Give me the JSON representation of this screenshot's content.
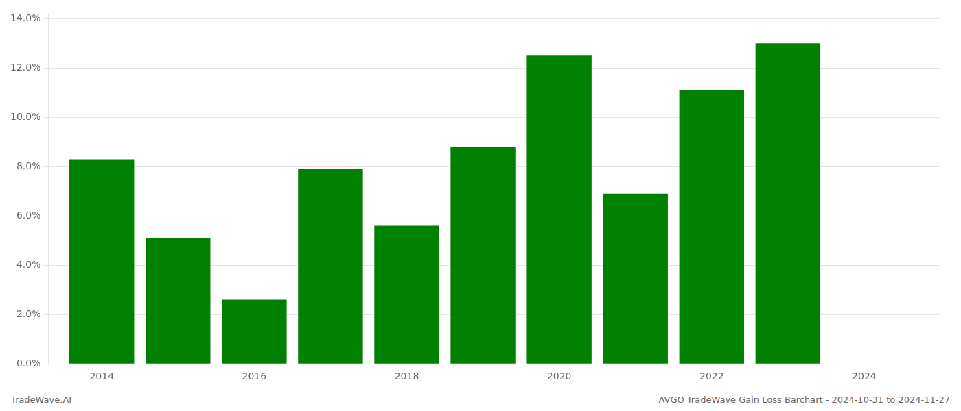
{
  "chart_data": {
    "type": "bar",
    "x": [
      2014,
      2015,
      2016,
      2017,
      2018,
      2019,
      2020,
      2021,
      2022,
      2023
    ],
    "values": [
      0.083,
      0.051,
      0.026,
      0.079,
      0.056,
      0.088,
      0.125,
      0.069,
      0.111,
      0.13
    ],
    "color": "#008000",
    "xlim": [
      2013.3,
      2025.0
    ],
    "xticks": [
      2014,
      2016,
      2018,
      2020,
      2022,
      2024
    ],
    "ylim": [
      0,
      0.142
    ],
    "yticks": [
      {
        "value": 0,
        "label": "0.0%"
      },
      {
        "value": 0.02,
        "label": "2.0%"
      },
      {
        "value": 0.04,
        "label": "4.0%"
      },
      {
        "value": 0.06,
        "label": "6.0%"
      },
      {
        "value": 0.08,
        "label": "8.0%"
      },
      {
        "value": 0.1,
        "label": "10.0%"
      },
      {
        "value": 0.12,
        "label": "12.0%"
      },
      {
        "value": 0.14,
        "label": "14.0%"
      }
    ],
    "grid": "y",
    "annotations": [
      "TradeWave.AI",
      "AVGO TradeWave Gain Loss Barchart - 2024-10-31 to 2024-11-27"
    ]
  }
}
